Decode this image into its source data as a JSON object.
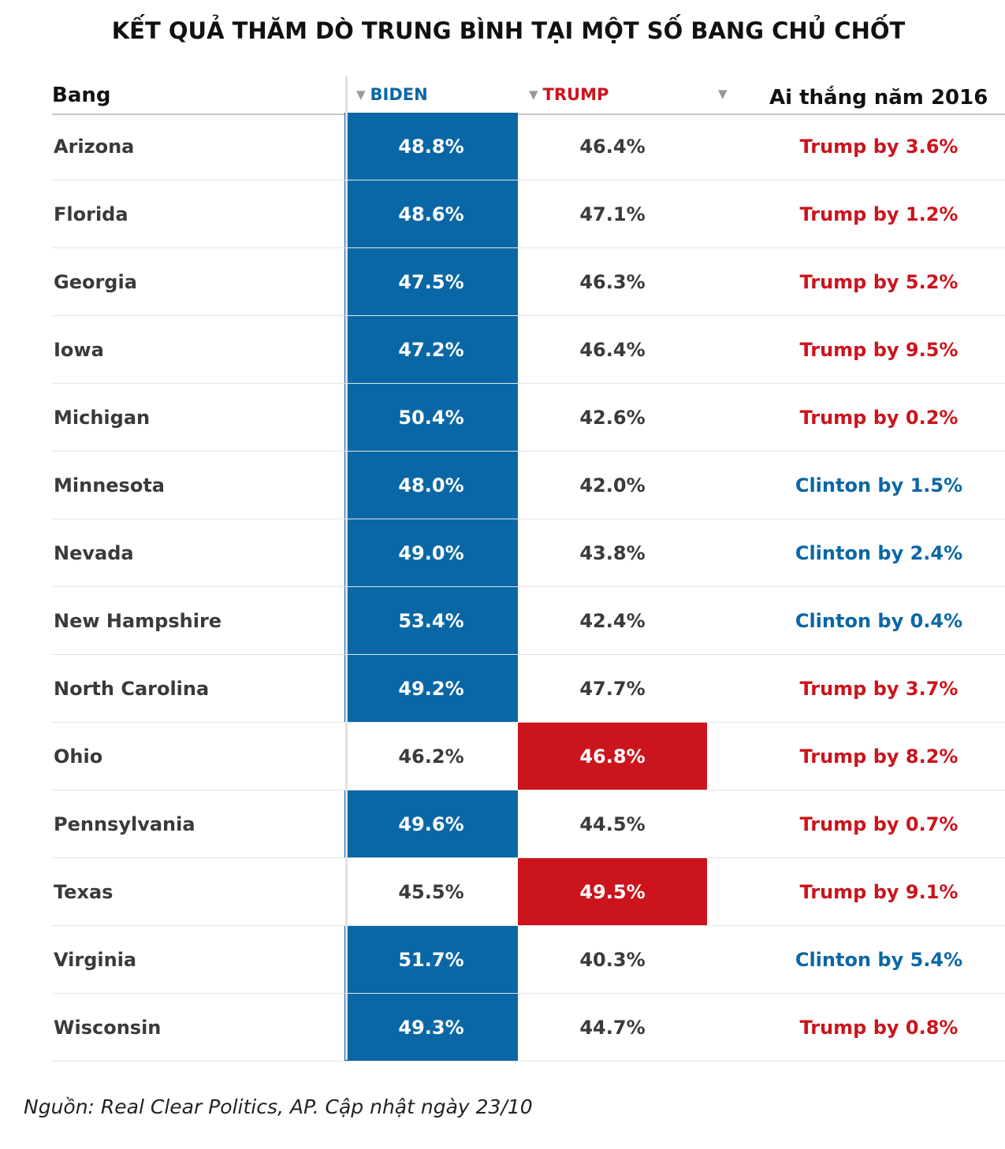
{
  "title": "KẾT QUẢ THĂM DÒ TRUNG BÌNH TẠI MỘT SỐ BANG CHỦ CHỐT",
  "headers": {
    "state": "Bang",
    "biden": "BIDEN",
    "trump": "TRUMP",
    "won_2016": "Ai thắng năm 2016",
    "sort_glyph": "▼"
  },
  "colors": {
    "biden_blue": "#0a67a6",
    "trump_red": "#cc141c",
    "text_dark": "#3a3a3a"
  },
  "chart_data": {
    "type": "table",
    "columns": [
      "Bang",
      "BIDEN",
      "TRUMP",
      "Ai thắng năm 2016"
    ],
    "rows": [
      {
        "state": "Arizona",
        "biden": "48.8%",
        "trump": "46.4%",
        "won": "Trump by 3.6%",
        "won_party": "trump",
        "leader": "biden"
      },
      {
        "state": "Florida",
        "biden": "48.6%",
        "trump": "47.1%",
        "won": "Trump by 1.2%",
        "won_party": "trump",
        "leader": "biden"
      },
      {
        "state": "Georgia",
        "biden": "47.5%",
        "trump": "46.3%",
        "won": "Trump by 5.2%",
        "won_party": "trump",
        "leader": "biden"
      },
      {
        "state": "Iowa",
        "biden": "47.2%",
        "trump": "46.4%",
        "won": "Trump by 9.5%",
        "won_party": "trump",
        "leader": "biden"
      },
      {
        "state": "Michigan",
        "biden": "50.4%",
        "trump": "42.6%",
        "won": "Trump by 0.2%",
        "won_party": "trump",
        "leader": "biden"
      },
      {
        "state": "Minnesota",
        "biden": "48.0%",
        "trump": "42.0%",
        "won": "Clinton by 1.5%",
        "won_party": "clinton",
        "leader": "biden"
      },
      {
        "state": "Nevada",
        "biden": "49.0%",
        "trump": "43.8%",
        "won": "Clinton by 2.4%",
        "won_party": "clinton",
        "leader": "biden"
      },
      {
        "state": "New Hampshire",
        "biden": "53.4%",
        "trump": "42.4%",
        "won": "Clinton by 0.4%",
        "won_party": "clinton",
        "leader": "biden"
      },
      {
        "state": "North Carolina",
        "biden": "49.2%",
        "trump": "47.7%",
        "won": "Trump by 3.7%",
        "won_party": "trump",
        "leader": "biden"
      },
      {
        "state": "Ohio",
        "biden": "46.2%",
        "trump": "46.8%",
        "won": "Trump by 8.2%",
        "won_party": "trump",
        "leader": "trump"
      },
      {
        "state": "Pennsylvania",
        "biden": "49.6%",
        "trump": "44.5%",
        "won": "Trump by 0.7%",
        "won_party": "trump",
        "leader": "biden"
      },
      {
        "state": "Texas",
        "biden": "45.5%",
        "trump": "49.5%",
        "won": "Trump by 9.1%",
        "won_party": "trump",
        "leader": "trump"
      },
      {
        "state": "Virginia",
        "biden": "51.7%",
        "trump": "40.3%",
        "won": "Clinton by 5.4%",
        "won_party": "clinton",
        "leader": "biden"
      },
      {
        "state": "Wisconsin",
        "biden": "49.3%",
        "trump": "44.7%",
        "won": "Trump by 0.8%",
        "won_party": "trump",
        "leader": "biden"
      }
    ]
  },
  "source": "Nguồn: Real Clear Politics, AP. Cập nhật ngày 23/10"
}
